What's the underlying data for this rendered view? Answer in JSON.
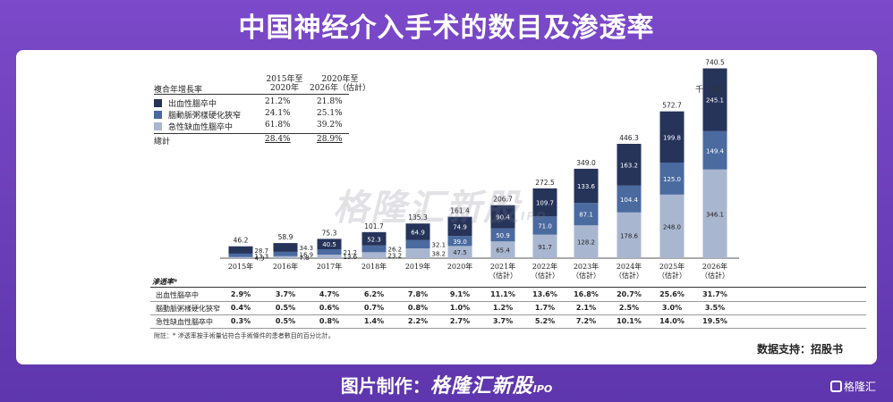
{
  "title": "中国神经介入手术的数目及渗透率",
  "legend": {
    "header_label": "複合年增長率",
    "col1_header": "2015年至\n2020年",
    "col2_header": "2020年至\n2026年（估計）",
    "rows": [
      {
        "name": "出血性腦卒中",
        "color": "#26345a",
        "cagr1": "21.2%",
        "cagr2": "21.8%"
      },
      {
        "name": "腦動脈粥樣硬化狹窄",
        "color": "#4a6aa0",
        "cagr1": "24.1%",
        "cagr2": "25.1%"
      },
      {
        "name": "急性缺血性腦卒中",
        "color": "#a9b6cf",
        "cagr1": "61.8%",
        "cagr2": "39.2%"
      }
    ],
    "total_label": "總計",
    "total_cagr1": "28.4%",
    "total_cagr2": "28.9%"
  },
  "unit_label": "千（台）",
  "chart_data": {
    "type": "bar",
    "stacked": true,
    "categories": [
      "2015年",
      "2016年",
      "2017年",
      "2018年",
      "2019年",
      "2020年",
      "2021年\n（估計）",
      "2022年\n（估計）",
      "2023年\n（估計）",
      "2024年\n（估計）",
      "2025年\n（估計）",
      "2026年\n（估計）"
    ],
    "totals": [
      46.2,
      58.9,
      75.3,
      101.7,
      135.3,
      161.4,
      206.7,
      272.5,
      349.0,
      446.3,
      572.7,
      740.5
    ],
    "series": [
      {
        "name": "急性缺血性腦卒中",
        "color": "#a9b6cf",
        "values": [
          4.3,
          7.8,
          13.6,
          23.2,
          38.2,
          47.5,
          65.4,
          91.7,
          128.2,
          178.6,
          248.0,
          346.1
        ]
      },
      {
        "name": "腦動脈粥樣硬化狹窄",
        "color": "#4a6aa0",
        "values": [
          13.3,
          16.9,
          21.2,
          26.2,
          32.1,
          39.0,
          50.9,
          71.0,
          87.1,
          104.4,
          125.0,
          149.4
        ]
      },
      {
        "name": "出血性腦卒中",
        "color": "#26345a",
        "values": [
          28.7,
          34.3,
          40.5,
          52.3,
          64.9,
          74.9,
          90.4,
          109.7,
          133.6,
          163.2,
          199.8,
          245.1
        ]
      }
    ],
    "ylim": [
      0,
      800
    ]
  },
  "penetration": {
    "title": "滲透率*",
    "rows": [
      {
        "name": "出血性腦卒中",
        "values": [
          "2.9%",
          "3.7%",
          "4.7%",
          "6.2%",
          "7.8%",
          "9.1%",
          "11.1%",
          "13.6%",
          "16.8%",
          "20.7%",
          "25.6%",
          "31.7%"
        ]
      },
      {
        "name": "腦動脈粥樣硬化狹窄",
        "values": [
          "0.4%",
          "0.5%",
          "0.6%",
          "0.7%",
          "0.8%",
          "1.0%",
          "1.2%",
          "1.7%",
          "2.1%",
          "2.5%",
          "3.0%",
          "3.5%"
        ]
      },
      {
        "name": "急性缺血性腦卒中",
        "values": [
          "0.3%",
          "0.5%",
          "0.8%",
          "1.4%",
          "2.2%",
          "2.7%",
          "3.7%",
          "5.2%",
          "7.2%",
          "10.1%",
          "14.0%",
          "19.5%"
        ]
      }
    ]
  },
  "note": "附註：* 滲透率按手術量佔符合手術條件的患者數目的百分比計。",
  "source": "数据支持：招股书",
  "watermark": {
    "text": "格隆汇新股",
    "sub": "IPO"
  },
  "footer": {
    "prefix": "图片制作：",
    "brand": "格隆汇新股",
    "ipo": "IPO"
  },
  "corner_logo": "格隆汇"
}
